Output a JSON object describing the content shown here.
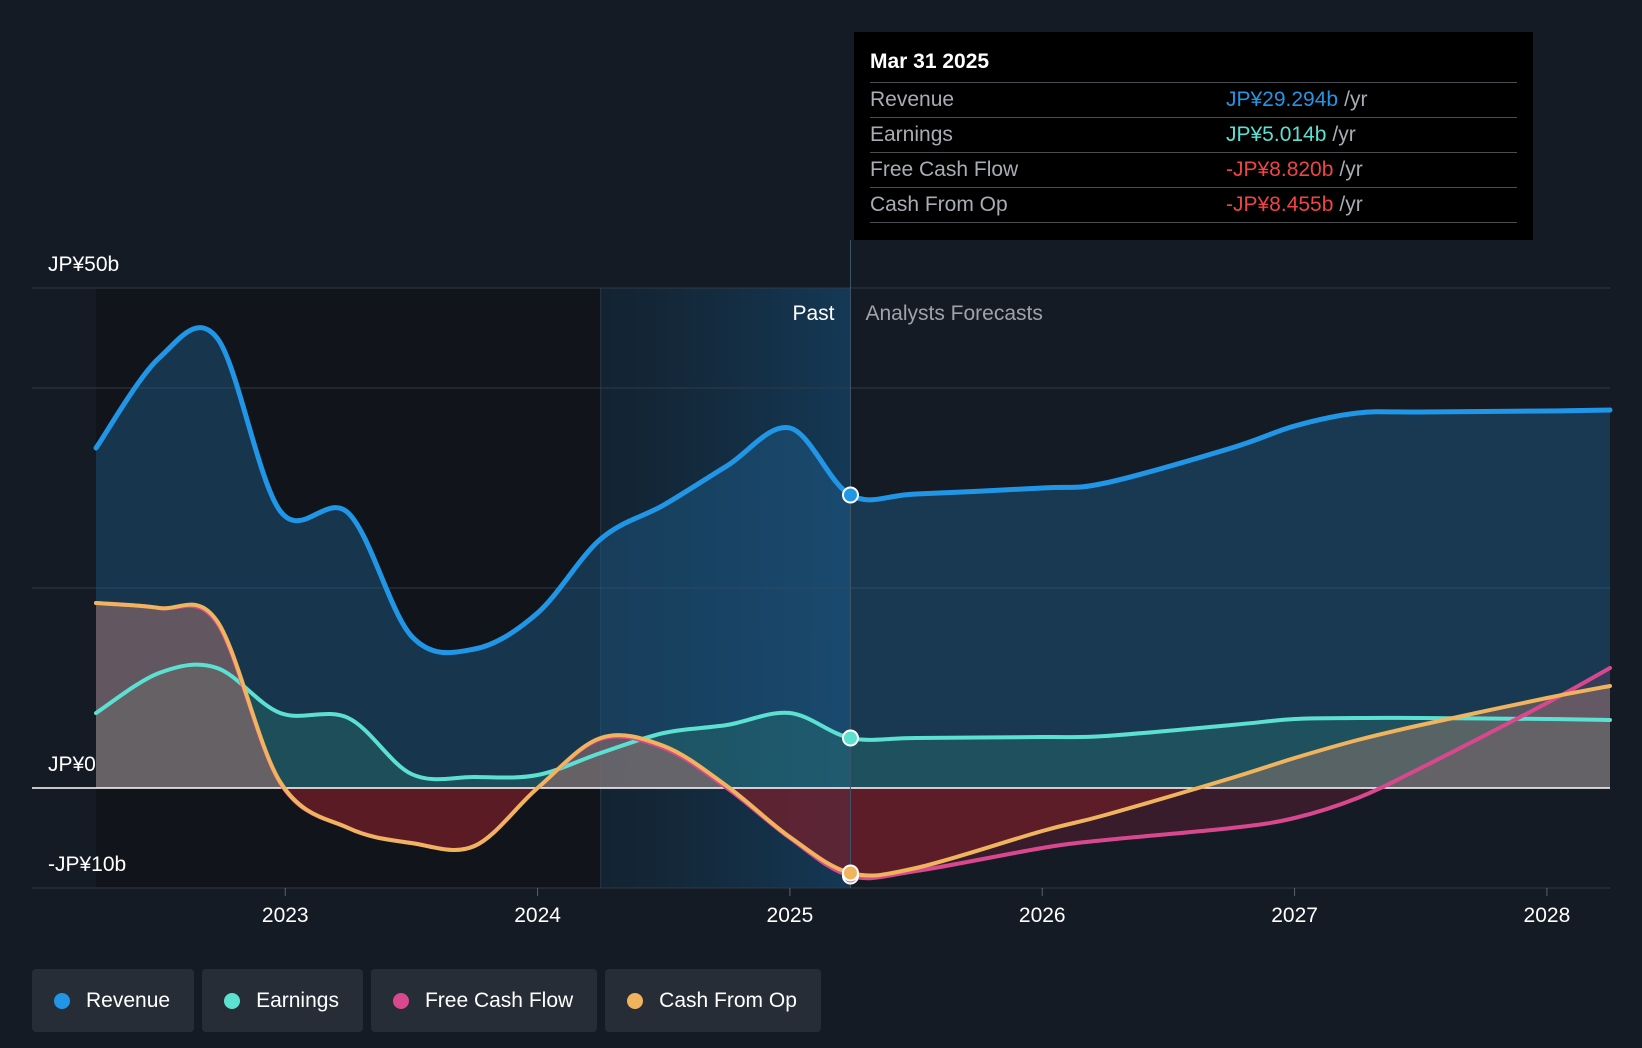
{
  "colors": {
    "revenue": "#2196e6",
    "earnings": "#5ce0d2",
    "free_cash_flow": "#d9488f",
    "cash_from_op": "#f0b35e",
    "negative": "#ef4444"
  },
  "tooltip": {
    "date": "Mar 31 2025",
    "rows": [
      {
        "label": "Revenue",
        "value": "JP¥29.294b",
        "unit": "/yr"
      },
      {
        "label": "Earnings",
        "value": "JP¥5.014b",
        "unit": "/yr"
      },
      {
        "label": "Free Cash Flow",
        "value": "-JP¥8.820b",
        "unit": "/yr"
      },
      {
        "label": "Cash From Op",
        "value": "-JP¥8.455b",
        "unit": "/yr"
      }
    ]
  },
  "sections": {
    "past": "Past",
    "forecast": "Analysts Forecasts"
  },
  "legend": [
    {
      "label": "Revenue",
      "icon": "revenue-dot-icon"
    },
    {
      "label": "Earnings",
      "icon": "earnings-dot-icon"
    },
    {
      "label": "Free Cash Flow",
      "icon": "free-cash-flow-dot-icon"
    },
    {
      "label": "Cash From Op",
      "icon": "cash-from-op-dot-icon"
    }
  ],
  "chart_data": {
    "type": "line",
    "title": "",
    "xlabel": "",
    "ylabel": "",
    "x_ticks": [
      2023,
      2024,
      2025,
      2026,
      2027,
      2028
    ],
    "x_tick_labels": [
      "2023",
      "2024",
      "2025",
      "2026",
      "2027",
      "2028"
    ],
    "y_tick_labels": [
      {
        "value": 50,
        "label": "JP¥50b"
      },
      {
        "value": 0,
        "label": "JP¥0"
      },
      {
        "value": -10,
        "label": "-JP¥10b"
      }
    ],
    "ylim": [
      -10,
      50
    ],
    "xlim": [
      2022.25,
      2028.25
    ],
    "divider_x": 2025.24,
    "highlight_start_x": 2024.25,
    "series": [
      {
        "name": "Revenue",
        "key": "revenue",
        "x": [
          2022.25,
          2022.5,
          2022.73,
          2022.98,
          2023.25,
          2023.5,
          2023.75,
          2024.0,
          2024.25,
          2024.5,
          2024.75,
          2025.0,
          2025.24,
          2025.5,
          2026.0,
          2026.25,
          2026.75,
          2027.0,
          2027.25,
          2027.5,
          2028.0,
          2028.25
        ],
        "y": [
          34.0,
          43.0,
          45.0,
          27.7,
          27.5,
          15.2,
          13.9,
          17.5,
          24.9,
          28.3,
          32.2,
          36.0,
          29.3,
          29.4,
          30.0,
          30.5,
          34.0,
          36.2,
          37.5,
          37.6,
          37.7,
          37.8
        ]
      },
      {
        "name": "Earnings",
        "key": "earnings",
        "x": [
          2022.25,
          2022.5,
          2022.73,
          2022.98,
          2023.25,
          2023.5,
          2023.75,
          2024.0,
          2024.25,
          2024.5,
          2024.75,
          2025.0,
          2025.24,
          2025.5,
          2026.0,
          2026.25,
          2026.75,
          2027.0,
          2027.25,
          2027.5,
          2028.0,
          2028.25
        ],
        "y": [
          7.5,
          11.5,
          12.0,
          7.5,
          7.0,
          1.4,
          1.1,
          1.3,
          3.5,
          5.5,
          6.3,
          7.5,
          5.0,
          5.0,
          5.1,
          5.2,
          6.3,
          6.9,
          7.0,
          7.0,
          6.9,
          6.8
        ]
      },
      {
        "name": "Free Cash Flow",
        "key": "free_cash_flow",
        "x": [
          2022.25,
          2022.5,
          2022.73,
          2022.98,
          2023.25,
          2023.5,
          2023.75,
          2024.0,
          2024.25,
          2024.5,
          2024.75,
          2025.0,
          2025.24,
          2025.5,
          2026.0,
          2026.25,
          2026.75,
          2027.0,
          2027.25,
          2027.5,
          2028.0,
          2028.25
        ],
        "y": [
          18.5,
          18.0,
          16.5,
          0.5,
          -4.0,
          -5.5,
          -5.8,
          0.0,
          4.9,
          4.0,
          0.0,
          -5.0,
          -8.8,
          -8.3,
          -6.0,
          -5.2,
          -4.0,
          -3.0,
          -1.0,
          2.0,
          8.5,
          12.0
        ]
      },
      {
        "name": "Cash From Op",
        "key": "cash_from_op",
        "x": [
          2022.25,
          2022.5,
          2022.73,
          2022.98,
          2023.25,
          2023.5,
          2023.75,
          2024.0,
          2024.25,
          2024.5,
          2024.75,
          2025.0,
          2025.24,
          2025.5,
          2026.0,
          2026.25,
          2026.75,
          2027.0,
          2027.25,
          2027.5,
          2028.0,
          2028.25
        ],
        "y": [
          18.5,
          18.0,
          16.7,
          0.6,
          -4.0,
          -5.5,
          -5.8,
          0.0,
          5.0,
          4.2,
          0.2,
          -4.9,
          -8.5,
          -8.0,
          -4.3,
          -2.7,
          1.0,
          3.0,
          4.8,
          6.3,
          9.0,
          10.2
        ]
      }
    ]
  }
}
